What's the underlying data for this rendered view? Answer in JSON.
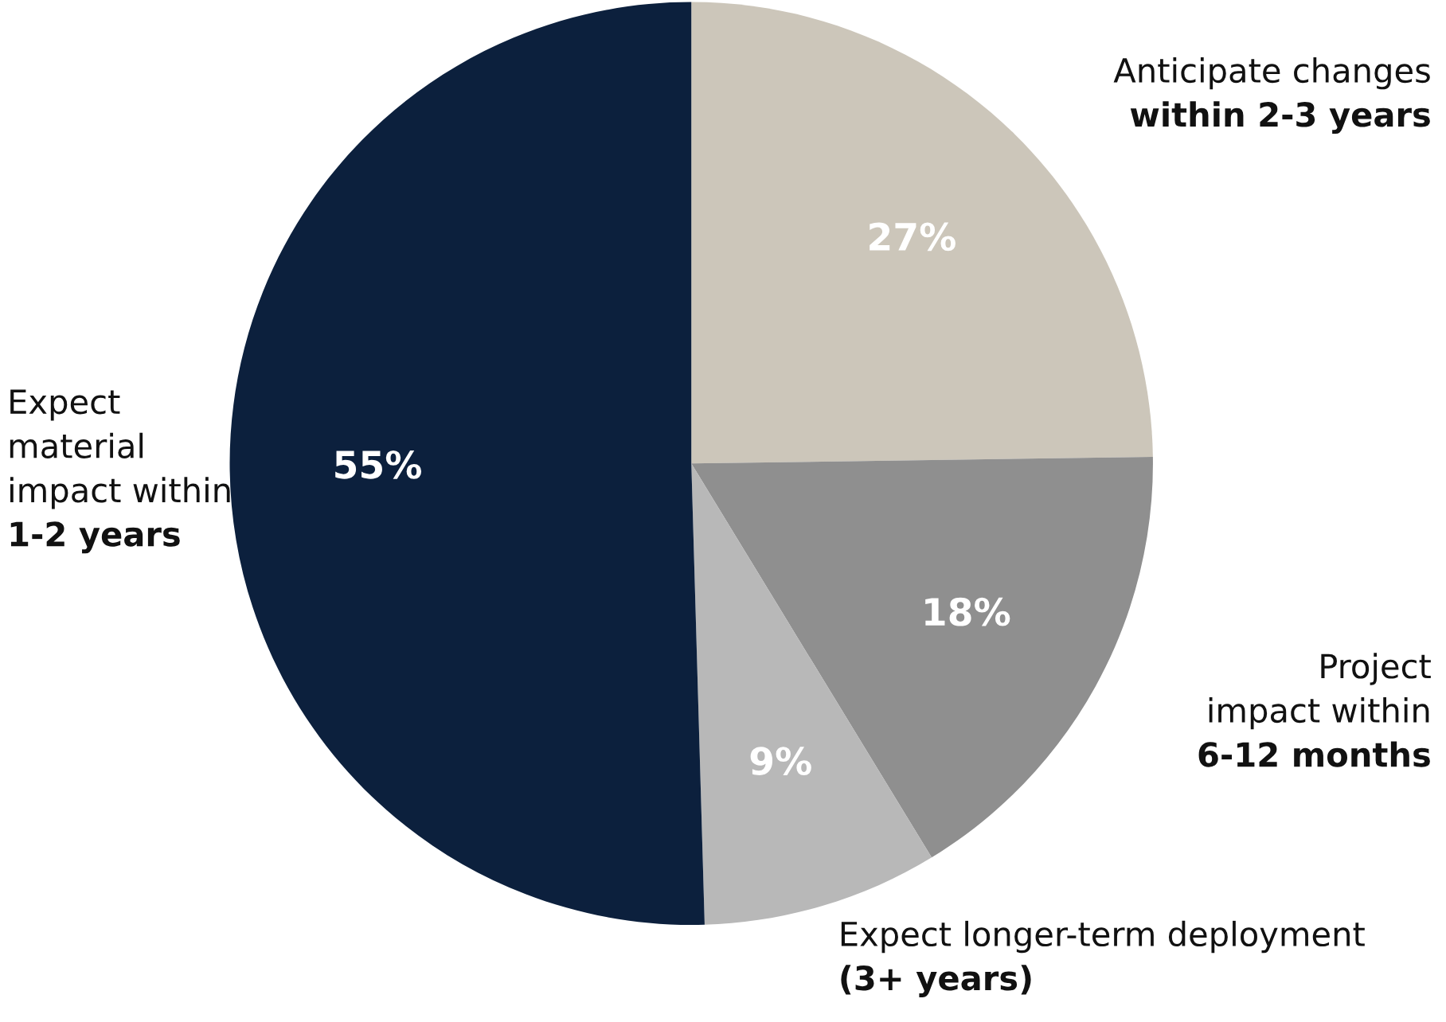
{
  "chart_data": {
    "type": "pie",
    "categories": [
      "Anticipate changes\nwithin 2-3 years",
      "Project\nimpact within\n6-12 months",
      "Expect longer-term deployment\n(3+ years)",
      "Expect\nmaterial\nimpact within\n1-2 years"
    ],
    "values": [
      27,
      18,
      9,
      55
    ],
    "value_labels": [
      "27%",
      "18%",
      "9%",
      "55%"
    ],
    "colors": [
      "#ccc6ba",
      "#8f8f8f",
      "#b8b8b8",
      "#0c203d"
    ],
    "legend": false
  }
}
